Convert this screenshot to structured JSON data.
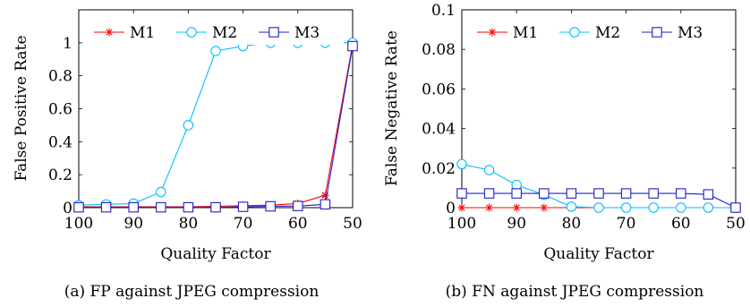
{
  "colors": {
    "M1": "#ff0000",
    "M2": "#00bfff",
    "M3": "#1f1fcc"
  },
  "chart_data": [
    {
      "type": "line",
      "caption": "(a) FP against JPEG compression",
      "xlabel": "Quality Factor",
      "ylabel": "False Positive Rate",
      "xlim": [
        100,
        50
      ],
      "ylim": [
        0,
        1.2
      ],
      "xticks": [
        100,
        90,
        80,
        70,
        60,
        50
      ],
      "yticks": [
        0,
        0.2,
        0.4,
        0.6,
        0.8,
        1
      ],
      "ytick_labels": [
        "0",
        "0.2",
        "0.4",
        "0.6",
        "0.8",
        "1"
      ],
      "grid": false,
      "legend": "top",
      "x": [
        100,
        95,
        90,
        85,
        80,
        75,
        70,
        65,
        60,
        55,
        50
      ],
      "series": [
        {
          "name": "M1",
          "marker": "asterisk",
          "values": [
            0.005,
            0.005,
            0.005,
            0.005,
            0.005,
            0.008,
            0.012,
            0.015,
            0.025,
            0.075,
            0.99
          ]
        },
        {
          "name": "M2",
          "marker": "circle",
          "values": [
            0.015,
            0.02,
            0.025,
            0.095,
            0.5,
            0.95,
            0.98,
            1.0,
            1.0,
            1.0,
            1.0
          ]
        },
        {
          "name": "M3",
          "marker": "square",
          "values": [
            0.002,
            0.002,
            0.002,
            0.002,
            0.002,
            0.002,
            0.005,
            0.008,
            0.01,
            0.02,
            0.98
          ]
        }
      ]
    },
    {
      "type": "line",
      "caption": "(b) FN against JPEG compression",
      "xlabel": "Quality Factor",
      "ylabel": "False Negative Rate",
      "xlim": [
        100,
        50
      ],
      "ylim": [
        0,
        0.1
      ],
      "xticks": [
        100,
        90,
        80,
        70,
        60,
        50
      ],
      "yticks": [
        0,
        0.02,
        0.04,
        0.06,
        0.08,
        0.1
      ],
      "ytick_labels": [
        "0",
        "0.02",
        "0.04",
        "0.06",
        "0.08",
        "0.1"
      ],
      "grid": false,
      "legend": "top",
      "x": [
        100,
        95,
        90,
        85,
        80,
        75,
        70,
        65,
        60,
        55,
        50
      ],
      "series": [
        {
          "name": "M1",
          "marker": "asterisk",
          "values": [
            0,
            0,
            0,
            0,
            0,
            0,
            0,
            0,
            0,
            0,
            0
          ]
        },
        {
          "name": "M2",
          "marker": "circle",
          "values": [
            0.022,
            0.019,
            0.0115,
            0.0065,
            0.0005,
            0,
            0,
            0,
            0,
            0,
            0
          ]
        },
        {
          "name": "M3",
          "marker": "square",
          "values": [
            0.0072,
            0.0072,
            0.0072,
            0.0072,
            0.0072,
            0.0072,
            0.0072,
            0.0072,
            0.0072,
            0.0067,
            0
          ]
        }
      ]
    }
  ]
}
